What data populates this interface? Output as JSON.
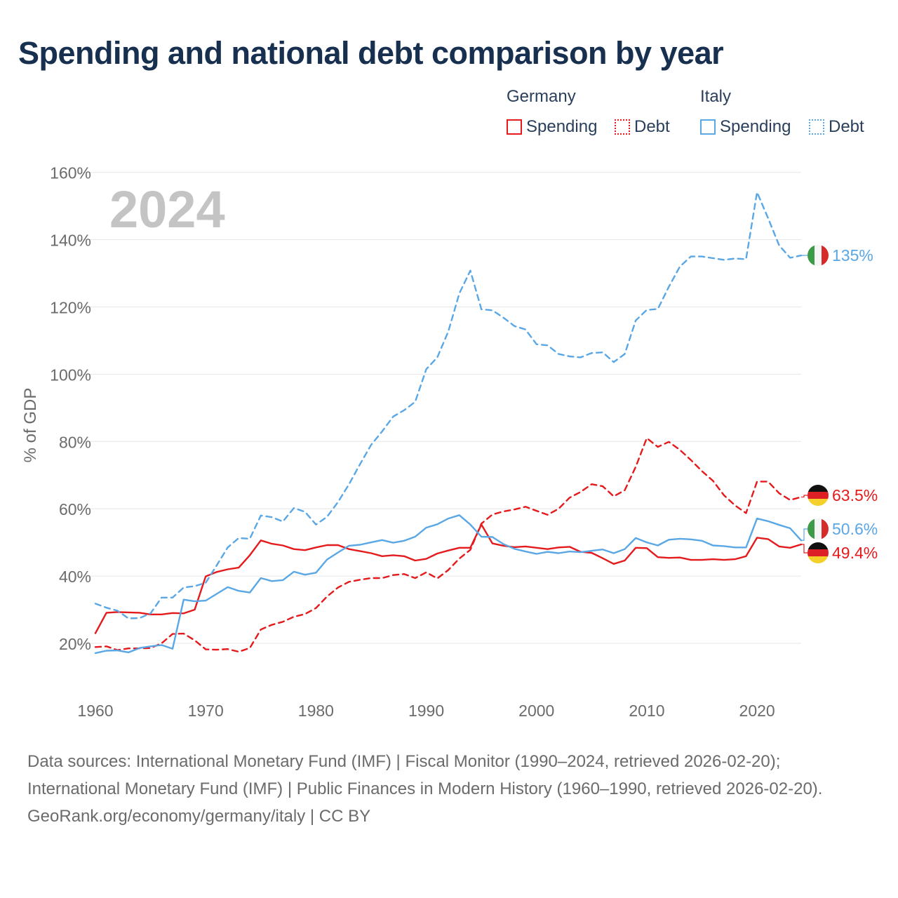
{
  "title": "Spending and national debt comparison by year",
  "legend": {
    "germany_title": "Germany",
    "italy_title": "Italy",
    "ger_spending": "Spending",
    "ger_debt": "Debt",
    "ita_spending": "Spending",
    "ita_debt": "Debt"
  },
  "colors": {
    "germany": "#e41a1c",
    "italy": "#5aa7e6",
    "grid": "#e6e6e6",
    "axis_text": "#6b6b6b",
    "year_watermark": "#c4c4c4"
  },
  "chart_data": {
    "type": "line",
    "title": "Spending and national debt comparison by year",
    "xlabel": "",
    "ylabel": "% of GDP",
    "year_label": "2024",
    "xlim": [
      1960,
      2024
    ],
    "ylim": [
      10,
      163
    ],
    "x_ticks": [
      1960,
      1970,
      1980,
      1990,
      2000,
      2010,
      2020
    ],
    "y_ticks": [
      20,
      40,
      60,
      80,
      100,
      120,
      140,
      160
    ],
    "y_tick_labels": [
      "20%",
      "40%",
      "60%",
      "80%",
      "100%",
      "120%",
      "140%",
      "160%"
    ],
    "x": [
      1960,
      1961,
      1962,
      1963,
      1964,
      1965,
      1966,
      1967,
      1968,
      1969,
      1970,
      1971,
      1972,
      1973,
      1974,
      1975,
      1976,
      1977,
      1978,
      1979,
      1980,
      1981,
      1982,
      1983,
      1984,
      1985,
      1986,
      1987,
      1988,
      1989,
      1990,
      1991,
      1992,
      1993,
      1994,
      1995,
      1996,
      1997,
      1998,
      1999,
      2000,
      2001,
      2002,
      2003,
      2004,
      2005,
      2006,
      2007,
      2008,
      2009,
      2010,
      2011,
      2012,
      2013,
      2014,
      2015,
      2016,
      2017,
      2018,
      2019,
      2020,
      2021,
      2022,
      2023,
      2024
    ],
    "series": [
      {
        "name": "Germany Spending",
        "country": "germany",
        "style": "solid",
        "values": [
          23.0,
          29.1,
          29.3,
          29.2,
          29.1,
          28.6,
          28.6,
          29.0,
          28.9,
          30.0,
          39.9,
          41.2,
          42.0,
          42.5,
          46.2,
          50.6,
          49.6,
          49.1,
          48.0,
          47.7,
          48.5,
          49.2,
          49.2,
          48.0,
          47.4,
          46.8,
          45.9,
          46.2,
          45.9,
          44.6,
          45.1,
          46.7,
          47.6,
          48.4,
          48.4,
          55.3,
          49.7,
          49.0,
          48.6,
          48.8,
          48.4,
          48.0,
          48.5,
          48.7,
          47.2,
          46.9,
          45.3,
          43.6,
          44.6,
          48.4,
          48.3,
          45.6,
          45.4,
          45.5,
          44.8,
          44.8,
          45.0,
          44.8,
          45.0,
          45.9,
          51.4,
          51.0,
          48.8,
          48.4,
          49.4
        ]
      },
      {
        "name": "Germany Debt",
        "country": "germany",
        "style": "dashed",
        "values": [
          18.9,
          19.1,
          18.0,
          18.5,
          18.5,
          18.6,
          20.0,
          22.8,
          22.9,
          20.9,
          18.2,
          18.1,
          18.3,
          17.5,
          18.6,
          24.1,
          25.5,
          26.4,
          27.9,
          28.7,
          30.5,
          33.9,
          36.6,
          38.3,
          38.9,
          39.4,
          39.4,
          40.3,
          40.6,
          39.4,
          41.1,
          39.3,
          41.8,
          45.2,
          47.8,
          55.6,
          58.3,
          59.2,
          59.8,
          60.6,
          59.4,
          58.2,
          60.0,
          63.3,
          65.0,
          67.3,
          66.7,
          63.7,
          65.5,
          72.5,
          81.0,
          78.4,
          79.9,
          77.5,
          74.5,
          71.2,
          68.3,
          64.0,
          61.0,
          58.7,
          68.1,
          68.1,
          64.6,
          62.6,
          63.5
        ]
      },
      {
        "name": "Italy Spending",
        "country": "italy",
        "style": "solid",
        "values": [
          17.1,
          17.8,
          17.9,
          17.3,
          18.6,
          19.1,
          19.5,
          18.4,
          33.0,
          32.5,
          32.7,
          34.7,
          36.7,
          35.6,
          35.1,
          39.4,
          38.5,
          38.8,
          41.3,
          40.4,
          41.0,
          44.9,
          47.0,
          49.0,
          49.3,
          50.0,
          50.7,
          49.9,
          50.5,
          51.7,
          54.4,
          55.4,
          57.1,
          58.1,
          55.3,
          51.7,
          51.6,
          49.5,
          48.1,
          47.3,
          46.6,
          47.2,
          46.8,
          47.3,
          47.1,
          47.5,
          47.9,
          46.8,
          48.0,
          51.3,
          50.0,
          49.1,
          50.8,
          51.1,
          50.9,
          50.5,
          49.1,
          48.9,
          48.5,
          48.5,
          57.1,
          56.3,
          55.2,
          54.2,
          50.6
        ]
      },
      {
        "name": "Italy Debt",
        "country": "italy",
        "style": "dashed",
        "values": [
          31.8,
          30.6,
          29.7,
          27.4,
          27.5,
          28.9,
          33.6,
          33.6,
          36.6,
          37.0,
          38.0,
          43.2,
          48.5,
          51.3,
          51.1,
          58.0,
          57.5,
          56.2,
          60.2,
          59.1,
          55.3,
          57.6,
          62.0,
          67.3,
          73.3,
          79.0,
          83.0,
          87.4,
          89.3,
          91.8,
          101.5,
          105.0,
          112.7,
          124.0,
          130.8,
          119.3,
          119.0,
          116.8,
          114.3,
          113.3,
          108.9,
          108.6,
          106.0,
          105.3,
          105.0,
          106.3,
          106.5,
          103.6,
          106.0,
          116.0,
          119.1,
          119.4,
          126.0,
          132.0,
          135.0,
          135.0,
          134.5,
          134.0,
          134.4,
          134.2,
          154.1,
          146.4,
          138.3,
          134.6,
          135.3
        ]
      }
    ],
    "end_labels": {
      "italy_debt": "135%",
      "germany_debt": "63.5%",
      "italy_spending": "50.6%",
      "germany_spending": "49.4%"
    }
  },
  "footer": {
    "sources": "Data sources: International Monetary Fund (IMF) | Fiscal Monitor (1990–2024, retrieved 2026-02-20); International Monetary Fund (IMF) | Public Finances in Modern History (1960–1990, retrieved 2026-02-20).",
    "credit": "GeoRank.org/economy/germany/italy | CC BY"
  }
}
